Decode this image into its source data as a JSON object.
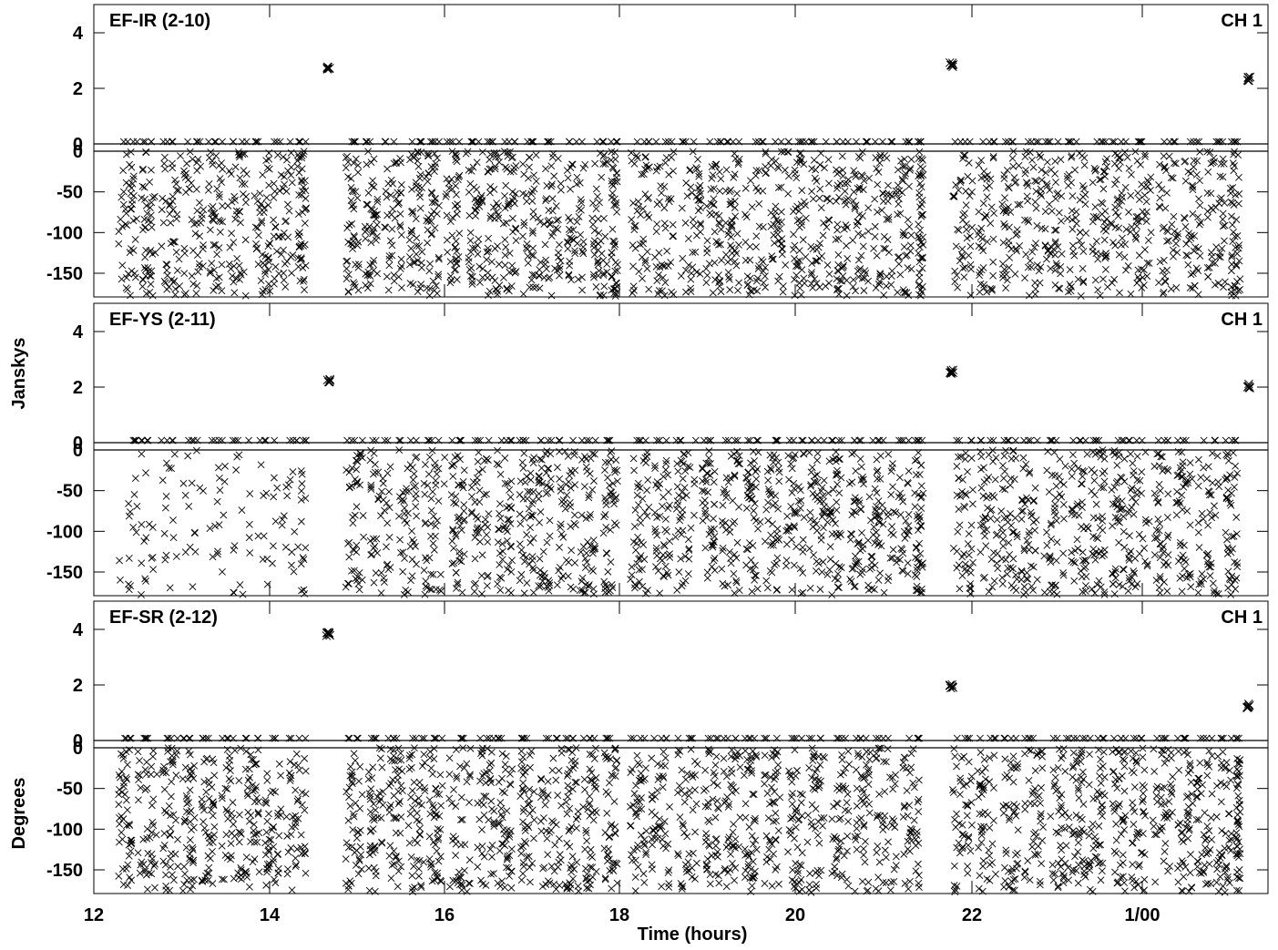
{
  "figure": {
    "ylabel_amp": "Janskys",
    "ylabel_phase": "Degrees",
    "xlabel": "Time (hours)",
    "channel": "CH 1"
  },
  "chart_data": [
    {
      "type": "scatter",
      "title": "EF-IR (2-10)",
      "channel": "CH 1",
      "xlabel": "Time (hours)",
      "x_ticks": [
        "12",
        "14",
        "16",
        "18",
        "20",
        "22",
        "1/00"
      ],
      "xlim": [
        12.0,
        25.5
      ],
      "amplitude": {
        "ylabel": "Janskys",
        "y_ticks": [
          "0",
          "2",
          "4"
        ],
        "ylim": [
          -0.2,
          5.0
        ],
        "calibrator_scans": [
          {
            "t": 14.67,
            "value": 2.7
          },
          {
            "t": 21.77,
            "value": 2.85
          },
          {
            "t": 25.25,
            "value": 2.35
          }
        ],
        "target_level": 0.05
      },
      "phase": {
        "ylabel": "Degrees",
        "y_ticks": [
          "0",
          "-50",
          "-100",
          "-150"
        ],
        "ylim": [
          -180,
          5
        ],
        "target_range": [
          -180,
          0
        ]
      },
      "data_gaps": [
        [
          14.42,
          14.87
        ],
        [
          17.98,
          18.12
        ],
        [
          21.45,
          21.78
        ]
      ],
      "marker": "x"
    },
    {
      "type": "scatter",
      "title": "EF-YS (2-11)",
      "channel": "CH 1",
      "xlabel": "Time (hours)",
      "x_ticks": [
        "12",
        "14",
        "16",
        "18",
        "20",
        "22",
        "1/00"
      ],
      "xlim": [
        12.0,
        25.5
      ],
      "amplitude": {
        "ylabel": "Janskys",
        "y_ticks": [
          "0",
          "2",
          "4"
        ],
        "ylim": [
          -0.2,
          5.0
        ],
        "calibrator_scans": [
          {
            "t": 14.67,
            "value": 2.2
          },
          {
            "t": 21.77,
            "value": 2.55
          },
          {
            "t": 25.25,
            "value": 2.05
          }
        ],
        "target_level": 0.05
      },
      "phase": {
        "ylabel": "Degrees",
        "y_ticks": [
          "0",
          "-50",
          "-100",
          "-150"
        ],
        "ylim": [
          -180,
          5
        ],
        "target_range": [
          -180,
          0
        ]
      },
      "data_gaps": [
        [
          14.42,
          14.87
        ],
        [
          17.98,
          18.12
        ],
        [
          21.45,
          21.78
        ]
      ],
      "marker": "x"
    },
    {
      "type": "scatter",
      "title": "EF-SR (2-12)",
      "channel": "CH 1",
      "xlabel": "Time (hours)",
      "x_ticks": [
        "12",
        "14",
        "16",
        "18",
        "20",
        "22",
        "1/00"
      ],
      "xlim": [
        12.0,
        25.5
      ],
      "amplitude": {
        "ylabel": "Janskys",
        "y_ticks": [
          "0",
          "2",
          "4"
        ],
        "ylim": [
          -0.2,
          5.0
        ],
        "calibrator_scans": [
          {
            "t": 14.67,
            "value": 3.85
          },
          {
            "t": 21.77,
            "value": 1.95
          },
          {
            "t": 25.25,
            "value": 1.25
          }
        ],
        "target_level": 0.05
      },
      "phase": {
        "ylabel": "Degrees",
        "y_ticks": [
          "0",
          "-50",
          "-100",
          "-150"
        ],
        "ylim": [
          -180,
          5
        ],
        "target_range": [
          -180,
          0
        ]
      },
      "data_gaps": [
        [
          14.42,
          14.87
        ],
        [
          17.98,
          18.12
        ],
        [
          21.45,
          21.78
        ]
      ],
      "marker": "x"
    }
  ]
}
